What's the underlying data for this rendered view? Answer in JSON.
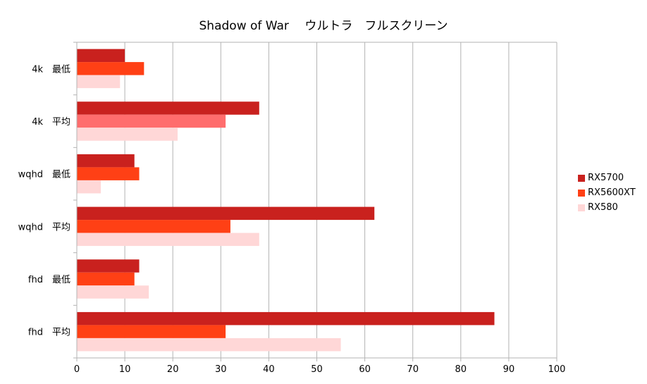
{
  "chart_data": {
    "type": "bar",
    "orientation": "horizontal",
    "title": "Shadow of War　 ウルトラ　フルスクリーン",
    "categories": [
      "4k　最低",
      "4k　平均",
      "wqhd　最低",
      "wqhd　平均",
      "fhd　最低",
      "fhd　平均"
    ],
    "series": [
      {
        "name": "RX5700",
        "values": [
          10,
          38,
          12,
          62,
          13,
          87
        ],
        "color": "#c9211e"
      },
      {
        "name": "RX5600XT",
        "values": [
          14,
          31,
          13,
          32,
          12,
          31
        ],
        "color": "#ff4015"
      },
      {
        "name": "RX580",
        "values": [
          9,
          21,
          5,
          38,
          15,
          55
        ],
        "color": "#ffd7d7"
      }
    ],
    "bar_color_overrides": [
      {
        "series": 1,
        "category": 1,
        "color": "#ff6d6d"
      }
    ],
    "xlim": [
      0,
      100
    ],
    "xticks": [
      0,
      10,
      20,
      30,
      40,
      50,
      60,
      70,
      80,
      90,
      100
    ],
    "xlabel": "",
    "ylabel": "",
    "grid": true,
    "legend_position": "right"
  }
}
